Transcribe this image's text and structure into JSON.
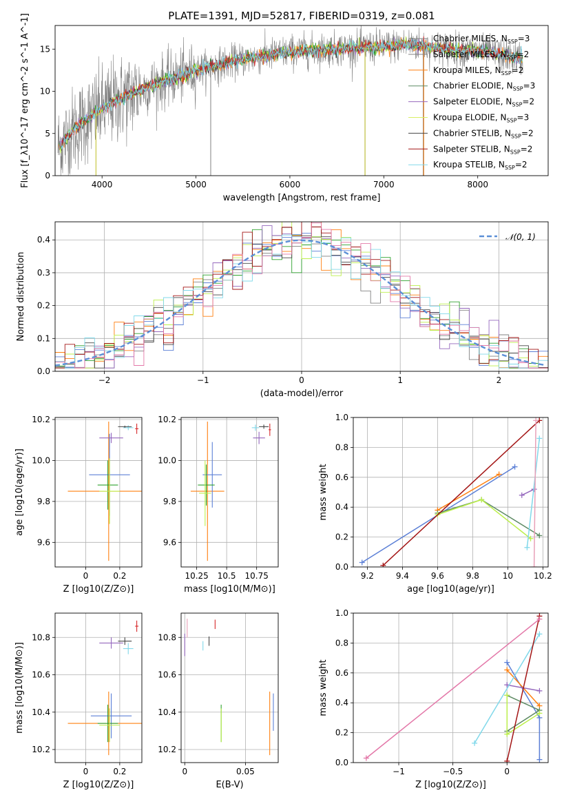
{
  "title": "PLATE=1391, MJD=52817, FIBERID=0319, z=0.081",
  "colors": [
    "#7f7f7f",
    "#17becf",
    "#ff7f0e",
    "#2ca02c",
    "#9467bd",
    "#bcbd22",
    "#000000",
    "#d62728",
    "#80d8ea"
  ],
  "chart_data": [
    {
      "id": "spectrum",
      "type": "line",
      "xlabel": "wavelength [Angstrom, rest frame]",
      "ylabel": "Flux [f_λ10^-17 erg cm^-2 s^-1 A^-1]",
      "xlim": [
        3500,
        8750
      ],
      "ylim": [
        0,
        17.8
      ],
      "xticks": [
        4000,
        5000,
        6000,
        7000,
        8000
      ],
      "yticks": [
        0,
        5,
        10,
        15
      ],
      "grid": false,
      "legend": "upper right",
      "legend_entries": [
        "Chabrier MILES, N_SSP=3",
        "Salpeter MILES, N_SSP=2",
        "Kroupa MILES, N_SSP=2",
        "Chabrier ELODIE, N_SSP=3",
        "Salpeter ELODIE, N_SSP=2",
        "Kroupa ELODIE, N_SSP=3",
        "Chabrier STELIB, N_SSP=2",
        "Salpeter STELIB, N_SSP=2",
        "Kroupa STELIB, N_SSP=2"
      ],
      "continuum": {
        "x": [
          3550,
          3700,
          3900,
          4100,
          4300,
          4500,
          4800,
          5000,
          5200,
          5500,
          5800,
          6000,
          6300,
          6600,
          7000,
          7300,
          7500,
          7800,
          8100,
          8500
        ],
        "y": [
          3.5,
          5.5,
          7.2,
          8.6,
          9.6,
          10.6,
          11.7,
          12.5,
          13.0,
          13.8,
          14.3,
          14.7,
          14.9,
          15.1,
          15.3,
          15.6,
          15.2,
          14.9,
          14.6,
          13.8
        ]
      },
      "data_noise": 2.0,
      "spikes": [
        {
          "x": 5157,
          "y": 0
        },
        {
          "x": 6800,
          "y": 0
        },
        {
          "x": 7420,
          "y": 0
        }
      ]
    },
    {
      "id": "residuals",
      "type": "histogram",
      "xlabel": "(data-model)/error",
      "ylabel": "Normed distribution",
      "xlim": [
        -2.5,
        2.5
      ],
      "ylim": [
        0,
        0.455
      ],
      "xticks": [
        -2,
        -1,
        0,
        1,
        2
      ],
      "yticks": [
        0.0,
        0.1,
        0.2,
        0.3,
        0.4
      ],
      "grid": true,
      "legend": "upper right",
      "legend_entries": [
        "𝒩(0, 1)"
      ],
      "bin_width": 0.1,
      "n_histograms": 9
    },
    {
      "id": "age-Z",
      "type": "errorbar",
      "xlabel": "Z [log10(Z/Z⊙)]",
      "ylabel": "age  [log10(age/yr)]",
      "xlim": [
        -0.18,
        0.33
      ],
      "ylim": [
        9.48,
        10.21
      ],
      "xticks": [
        0.0,
        0.2
      ],
      "yticks": [
        9.6,
        9.8,
        10.0,
        10.2
      ],
      "grid": true,
      "points": [
        {
          "x": 0.135,
          "y": 9.85,
          "xerr": 0.24,
          "yerr": 0.34,
          "color": "#ff7f0e"
        },
        {
          "x": 0.14,
          "y": 9.93,
          "xerr": 0.12,
          "yerr": 0.2,
          "color": "#5b7fd6"
        },
        {
          "x": 0.13,
          "y": 9.88,
          "xerr": 0.06,
          "yerr": 0.12,
          "color": "#2ca02c"
        },
        {
          "x": 0.14,
          "y": 9.85,
          "xerr": 0.06,
          "yerr": 0.16,
          "color": "#bcef4b"
        },
        {
          "x": 0.15,
          "y": 10.11,
          "xerr": 0.07,
          "yerr": 0.025,
          "color": "#9467bd"
        },
        {
          "x": 0.25,
          "y": 10.16,
          "xerr": 0.03,
          "yerr": 0.012,
          "color": "#80d8ea"
        },
        {
          "x": 0.23,
          "y": 10.165,
          "xerr": 0.04,
          "yerr": 0.005,
          "color": "#444444"
        },
        {
          "x": 0.3,
          "y": 10.155,
          "xerr": 0.01,
          "yerr": 0.025,
          "color": "#d62728"
        }
      ]
    },
    {
      "id": "age-mass",
      "type": "errorbar",
      "xlabel": "mass [log10(M/M⊙)]",
      "ylabel": "",
      "xlim": [
        10.12,
        10.93
      ],
      "ylim": [
        9.48,
        10.21
      ],
      "xticks": [
        10.25,
        10.5,
        10.75
      ],
      "yticks": [
        9.6,
        9.8,
        10.0,
        10.2
      ],
      "grid": true,
      "points": [
        {
          "x": 10.34,
          "y": 9.85,
          "xerr": 0.14,
          "yerr": 0.34,
          "color": "#ff7f0e"
        },
        {
          "x": 10.38,
          "y": 9.93,
          "xerr": 0.08,
          "yerr": 0.16,
          "color": "#5b7fd6"
        },
        {
          "x": 10.33,
          "y": 9.88,
          "xerr": 0.07,
          "yerr": 0.1,
          "color": "#2ca02c"
        },
        {
          "x": 10.32,
          "y": 9.84,
          "xerr": 0.05,
          "yerr": 0.16,
          "color": "#bcef4b"
        },
        {
          "x": 10.77,
          "y": 10.11,
          "xerr": 0.05,
          "yerr": 0.03,
          "color": "#9467bd"
        },
        {
          "x": 10.74,
          "y": 10.16,
          "xerr": 0.03,
          "yerr": 0.015,
          "color": "#80d8ea"
        },
        {
          "x": 10.81,
          "y": 10.165,
          "xerr": 0.04,
          "yerr": 0.01,
          "color": "#444444"
        },
        {
          "x": 10.86,
          "y": 10.15,
          "xerr": 0.01,
          "yerr": 0.03,
          "color": "#d62728"
        }
      ]
    },
    {
      "id": "weight-age",
      "type": "line",
      "xlabel": "age  [log10(age/yr)]",
      "ylabel": "mass weight",
      "xlim": [
        9.12,
        10.23
      ],
      "ylim": [
        0,
        1.0
      ],
      "xticks": [
        9.2,
        9.4,
        9.6,
        9.8,
        10.0,
        10.2
      ],
      "yticks": [
        0.0,
        0.2,
        0.4,
        0.6,
        0.8,
        1.0
      ],
      "grid": true,
      "series": [
        {
          "x": [
            9.17,
            10.04
          ],
          "y": [
            0.03,
            0.67
          ],
          "color": "#5b7fd6"
        },
        {
          "x": [
            9.6,
            9.95
          ],
          "y": [
            0.38,
            0.62
          ],
          "color": "#ff7f0e"
        },
        {
          "x": [
            9.6,
            9.85,
            10.18
          ],
          "y": [
            0.36,
            0.45,
            0.21
          ],
          "color": "#5d8a63"
        },
        {
          "x": [
            9.6,
            9.85,
            10.13
          ],
          "y": [
            0.35,
            0.45,
            0.19
          ],
          "color": "#bcef4b"
        },
        {
          "x": [
            10.08,
            10.15
          ],
          "y": [
            0.48,
            0.52
          ],
          "color": "#9467bd"
        },
        {
          "x": [
            10.11,
            10.18
          ],
          "y": [
            0.13,
            0.86
          ],
          "color": "#80d8ea"
        },
        {
          "x": [
            9.29,
            10.18
          ],
          "y": [
            0.01,
            0.98
          ],
          "color": "#a31515"
        },
        {
          "x": [
            10.15,
            10.16
          ],
          "y": [
            0.0,
            0.98
          ],
          "color": "#e8a0b8"
        }
      ]
    },
    {
      "id": "mass-Z",
      "type": "errorbar",
      "xlabel": "Z [log10(Z/Z⊙)]",
      "ylabel": "mass [log10(M/M⊙)]",
      "xlim": [
        -0.18,
        0.33
      ],
      "ylim": [
        10.13,
        10.93
      ],
      "xticks": [
        0.0,
        0.2
      ],
      "yticks": [
        10.2,
        10.4,
        10.6,
        10.8
      ],
      "grid": true,
      "points": [
        {
          "x": 0.135,
          "y": 10.34,
          "xerr": 0.24,
          "yerr": 0.17,
          "color": "#ff7f0e"
        },
        {
          "x": 0.15,
          "y": 10.38,
          "xerr": 0.12,
          "yerr": 0.12,
          "color": "#5b7fd6"
        },
        {
          "x": 0.13,
          "y": 10.34,
          "xerr": 0.06,
          "yerr": 0.1,
          "color": "#2ca02c"
        },
        {
          "x": 0.14,
          "y": 10.33,
          "xerr": 0.06,
          "yerr": 0.09,
          "color": "#bcef4b"
        },
        {
          "x": 0.15,
          "y": 10.77,
          "xerr": 0.07,
          "yerr": 0.03,
          "color": "#9467bd"
        },
        {
          "x": 0.25,
          "y": 10.74,
          "xerr": 0.03,
          "yerr": 0.03,
          "color": "#80d8ea"
        },
        {
          "x": 0.23,
          "y": 10.78,
          "xerr": 0.04,
          "yerr": 0.02,
          "color": "#444444"
        },
        {
          "x": 0.3,
          "y": 10.86,
          "xerr": 0.01,
          "yerr": 0.03,
          "color": "#d62728"
        }
      ]
    },
    {
      "id": "mass-ebv",
      "type": "errorbar",
      "xlabel": "E(B-V)",
      "ylabel": "",
      "xlim": [
        -0.003,
        0.077
      ],
      "ylim": [
        10.13,
        10.93
      ],
      "xticks": [
        0.0,
        0.05
      ],
      "yticks": [
        10.2,
        10.4,
        10.6,
        10.8
      ],
      "grid": true,
      "points": [
        {
          "x": 0.07,
          "y": 10.34,
          "xerr": 0,
          "yerr": 0.17,
          "color": "#ff7f0e"
        },
        {
          "x": 0.073,
          "y": 10.4,
          "xerr": 0,
          "yerr": 0.1,
          "color": "#5b7fd6"
        },
        {
          "x": 0.03,
          "y": 10.34,
          "xerr": 0,
          "yerr": 0.1,
          "color": "#2ca02c"
        },
        {
          "x": 0.03,
          "y": 10.33,
          "xerr": 0,
          "yerr": 0.09,
          "color": "#bcef4b"
        },
        {
          "x": 0.0,
          "y": 10.76,
          "xerr": 0,
          "yerr": 0.06,
          "color": "#9467bd"
        },
        {
          "x": 0.015,
          "y": 10.755,
          "xerr": 0,
          "yerr": 0.025,
          "color": "#80d8ea"
        },
        {
          "x": 0.02,
          "y": 10.78,
          "xerr": 0,
          "yerr": 0.025,
          "color": "#444444"
        },
        {
          "x": 0.025,
          "y": 10.87,
          "xerr": 0,
          "yerr": 0.025,
          "color": "#d62728"
        },
        {
          "x": 0.002,
          "y": 10.85,
          "xerr": 0,
          "yerr": 0.05,
          "color": "#e8a0b8"
        }
      ]
    },
    {
      "id": "weight-Z",
      "type": "line",
      "xlabel": "Z [log10(Z/Z⊙)]",
      "ylabel": "mass weight",
      "xlim": [
        -1.42,
        0.38
      ],
      "ylim": [
        0,
        1.0
      ],
      "xticks": [
        -1.0,
        -0.5,
        0.0
      ],
      "yticks": [
        0.0,
        0.2,
        0.4,
        0.6,
        0.8,
        1.0
      ],
      "grid": true,
      "series": [
        {
          "x": [
            0.0,
            0.3,
            0.3
          ],
          "y": [
            0.67,
            0.3,
            0.02
          ],
          "color": "#5b7fd6"
        },
        {
          "x": [
            0.0,
            0.3
          ],
          "y": [
            0.62,
            0.38
          ],
          "color": "#ff7f0e"
        },
        {
          "x": [
            0.0,
            0.3,
            0.0
          ],
          "y": [
            0.45,
            0.35,
            0.21
          ],
          "color": "#5d8a63"
        },
        {
          "x": [
            0.0,
            0.0,
            0.3
          ],
          "y": [
            0.45,
            0.19,
            0.33
          ],
          "color": "#bcef4b"
        },
        {
          "x": [
            0.0,
            0.3
          ],
          "y": [
            0.52,
            0.48
          ],
          "color": "#9467bd"
        },
        {
          "x": [
            -0.3,
            0.3
          ],
          "y": [
            0.13,
            0.86
          ],
          "color": "#80d8ea"
        },
        {
          "x": [
            0.0,
            0.3
          ],
          "y": [
            0.01,
            0.98
          ],
          "color": "#a31515"
        },
        {
          "x": [
            -1.3,
            0.3
          ],
          "y": [
            0.03,
            0.96
          ],
          "color": "#e377a8"
        }
      ]
    }
  ]
}
